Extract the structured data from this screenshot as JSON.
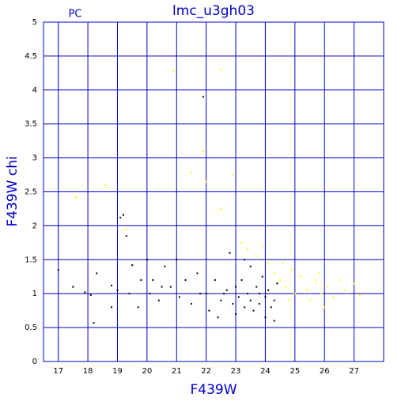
{
  "chart_data": {
    "type": "scatter",
    "title": "lmc_u3gh03",
    "subtitle": "PC",
    "x_label": "F439W",
    "y_label": "F439W chi",
    "xlim": [
      16.5,
      28
    ],
    "ylim": [
      0,
      5
    ],
    "xticks": [
      17,
      18,
      19,
      20,
      21,
      22,
      23,
      24,
      25,
      26,
      27
    ],
    "yticks": [
      0,
      0.5,
      1,
      1.5,
      2,
      2.5,
      3,
      3.5,
      4,
      4.5,
      5
    ],
    "grid": true,
    "axis_color": "#0000cc",
    "series": [
      {
        "color": "#000000",
        "x": [
          17.0,
          17.5,
          17.9,
          18.1,
          18.2,
          18.3,
          18.8,
          18.8,
          19.0,
          19.1,
          19.2,
          19.3,
          19.4,
          19.5,
          19.7,
          19.8,
          20.0,
          20.1,
          20.2,
          20.4,
          20.6,
          20.8,
          21.0,
          21.1,
          21.3,
          21.5,
          21.7,
          21.9,
          22.0,
          22.1,
          22.3,
          22.5,
          22.7,
          22.8,
          22.9,
          23.0,
          23.0,
          23.1,
          23.2,
          23.3,
          23.4,
          23.5,
          23.5,
          23.6,
          23.7,
          23.8,
          23.9,
          24.0,
          24.0,
          24.1,
          24.2,
          24.3,
          24.4,
          22.4,
          21.8,
          20.5,
          23.3,
          24.3,
          22.6,
          23.8
        ],
        "values": [
          1.35,
          1.1,
          1.02,
          0.98,
          0.57,
          1.3,
          0.8,
          1.12,
          1.05,
          2.12,
          2.16,
          1.85,
          1.0,
          1.42,
          0.8,
          1.2,
          1.5,
          1.0,
          1.2,
          0.9,
          1.4,
          1.1,
          1.5,
          0.95,
          1.2,
          0.85,
          1.3,
          3.9,
          1.0,
          0.75,
          1.2,
          0.9,
          1.05,
          1.6,
          0.85,
          1.1,
          0.7,
          0.95,
          1.2,
          0.8,
          1.0,
          0.9,
          1.4,
          0.75,
          1.1,
          0.85,
          1.25,
          0.95,
          0.65,
          1.05,
          0.8,
          0.9,
          1.15,
          0.65,
          1.0,
          1.1,
          1.5,
          0.6,
          1.0,
          1.0
        ]
      },
      {
        "color": "#ffff00",
        "x": [
          17.6,
          18.6,
          19.3,
          20.9,
          21.5,
          21.9,
          22.0,
          22.5,
          22.5,
          22.9,
          23.2,
          23.4,
          23.7,
          24.1,
          24.3,
          24.5,
          24.7,
          24.9,
          25.0,
          25.2,
          25.4,
          25.5,
          25.7,
          25.9,
          26.1,
          26.3,
          26.5,
          26.7,
          27.0,
          27.2,
          25.8,
          24.6,
          23.9,
          26.0,
          24.8
        ],
        "values": [
          2.42,
          2.6,
          1.95,
          4.28,
          2.78,
          3.1,
          2.65,
          4.3,
          2.25,
          2.75,
          1.75,
          1.65,
          1.55,
          1.45,
          1.3,
          1.2,
          1.1,
          1.35,
          1.0,
          1.25,
          1.05,
          0.9,
          1.2,
          1.0,
          1.1,
          0.95,
          1.2,
          1.05,
          1.15,
          0.98,
          1.3,
          1.45,
          1.7,
          0.8,
          0.9
        ]
      }
    ]
  }
}
